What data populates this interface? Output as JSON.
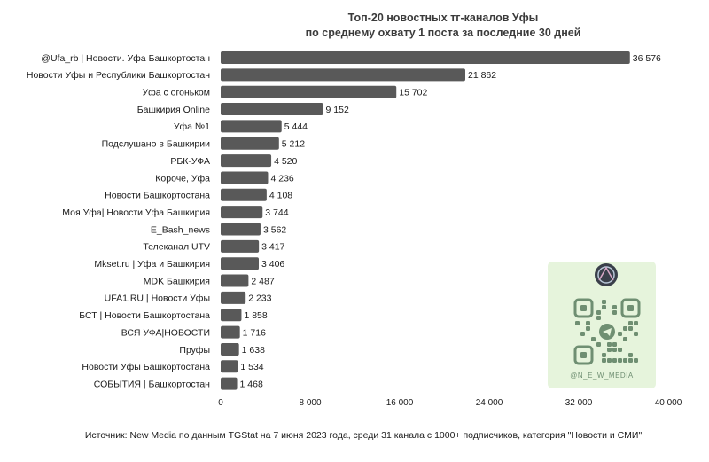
{
  "chart_data": {
    "type": "bar",
    "orientation": "horizontal",
    "title": [
      "Топ-20 новостных тг-каналов Уфы",
      "по среднему охвату 1 поста за последние 30 дней"
    ],
    "categories": [
      "@Ufa_rb | Новости. Уфа Башкортостан",
      "Новости Уфы и Республики Башкортостан",
      "Уфа с огоньком",
      "Башкирия Online",
      "Уфа №1",
      "Подслушано в Башкирии",
      "РБК-УФА",
      "Короче, Уфа",
      "Новости Башкортостана",
      "Моя Уфа| Новости Уфа Башкирия",
      "E_Bash_news",
      "Телеканал UTV",
      "Mkset.ru | Уфа и Башкирия",
      "MDK Башкирия",
      "UFA1.RU | Новости Уфы",
      "БСТ | Новости Башкортостана",
      "ВСЯ УФА|НОВОСТИ",
      "Пруфы",
      "Новости Уфы Башкортостана",
      "СОБЫТИЯ | Башкортостан"
    ],
    "values": [
      36576,
      21862,
      15702,
      9152,
      5444,
      5212,
      4520,
      4236,
      4108,
      3744,
      3562,
      3417,
      3406,
      2487,
      2233,
      1858,
      1716,
      1638,
      1534,
      1468
    ],
    "value_labels": [
      "36 576",
      "21 862",
      "15 702",
      "9 152",
      "5 444",
      "5 212",
      "4 520",
      "4 236",
      "4 108",
      "3 744",
      "3 562",
      "3 417",
      "3 406",
      "2 487",
      "2 233",
      "1 858",
      "1 716",
      "1 638",
      "1 534",
      "1 468"
    ],
    "xlim": [
      0,
      40000
    ],
    "xticks": [
      0,
      8000,
      16000,
      24000,
      32000,
      40000
    ],
    "xtick_labels": [
      "0",
      "8 000",
      "16 000",
      "24 000",
      "32 000",
      "40 000"
    ],
    "grid": false,
    "legend": "none",
    "bar_color": "#595959",
    "source": "Источник: New Media по данным TGStat на 7 июня 2023 года, среди 31 канала с 1000+ подписчиков, категория \"Новости и СМИ\""
  },
  "qr_badge": {
    "handle": "@N_E_W_MEDIA",
    "icon": "qr-code-icon",
    "avatar": "new-media-logo-icon",
    "center_icon": "telegram-icon",
    "background": "#e6f4dc",
    "accent": "#6f8f72"
  }
}
